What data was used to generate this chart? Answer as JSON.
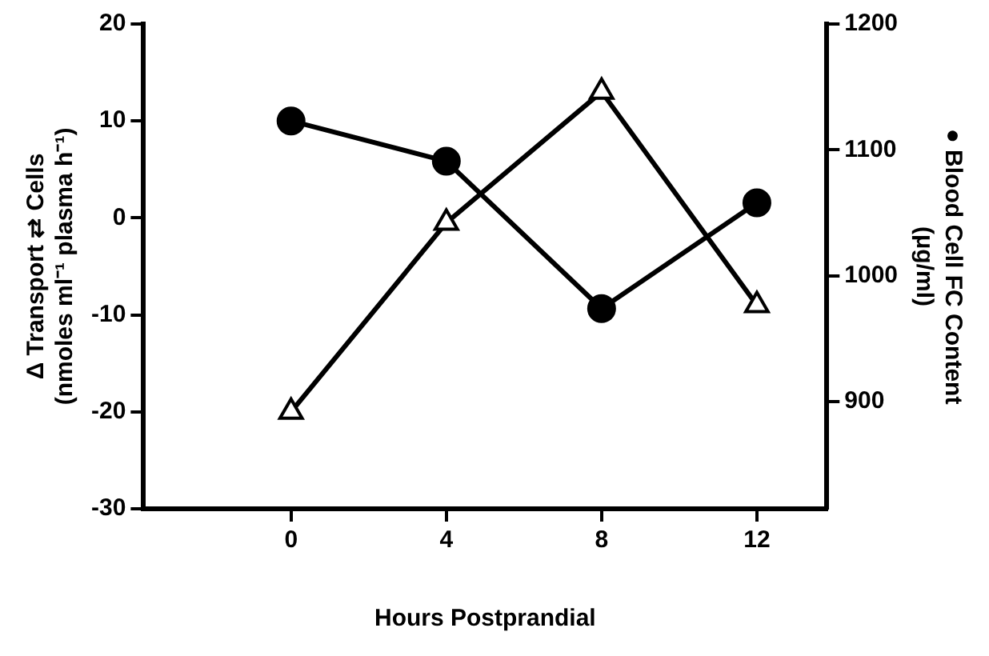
{
  "chart_data": {
    "type": "line",
    "xlabel": "Hours Postprandial",
    "ylabel": "Δ Transport ⇄ Cells\n(nmoles ml⁻¹ plasma h⁻¹)",
    "y2label": "● Blood Cell FC Content\n(μg/ml)",
    "x": [
      0,
      4,
      8,
      12
    ],
    "xlim": [
      -3.8,
      13.8
    ],
    "xticks": [
      0,
      4,
      8,
      12
    ],
    "ylim": [
      -30,
      20
    ],
    "yticks": [
      -30,
      -20,
      -10,
      0,
      10,
      20
    ],
    "y2lim": [
      815,
      1200
    ],
    "y2ticks": [
      900,
      1000,
      1100,
      1200
    ],
    "grid": false,
    "legend": false,
    "line_style": "solid",
    "series": [
      {
        "color": "#000000",
        "marker": "triangle",
        "values": [
          -20,
          -0.5,
          13,
          -9
        ]
      },
      {
        "color": "#000000",
        "marker": "circle",
        "axis": "y2",
        "values": [
          1123,
          1091,
          974,
          1058
        ]
      }
    ]
  }
}
